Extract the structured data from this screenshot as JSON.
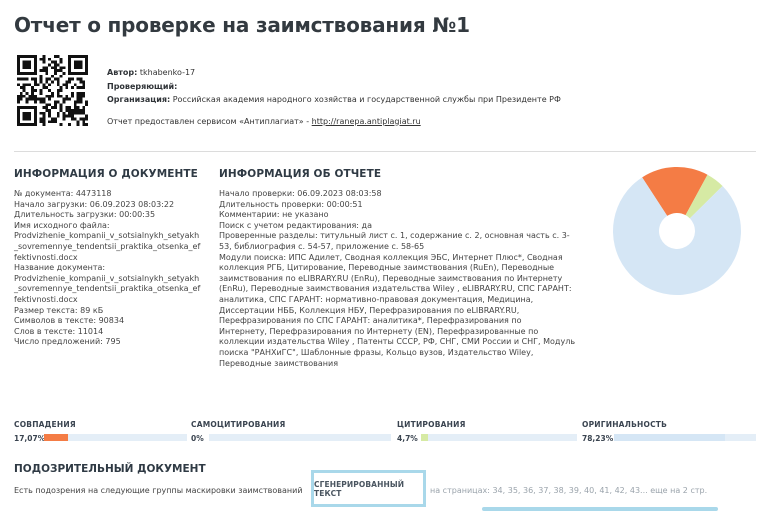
{
  "title": "Отчет о проверке на заимствования №1",
  "meta": {
    "author_label": "Автор:",
    "author_value": "tkhabenko-17",
    "checker_label": "Проверяющий:",
    "checker_value": "",
    "org_label": "Организация:",
    "org_value": "Российская академия народного хозяйства и государственной службы при Президенте РФ",
    "service_text": "Отчет предоставлен сервисом «Антиплагиат» - ",
    "service_link": "http://ranepa.antiplagiat.ru"
  },
  "doc_info": {
    "heading": "ИНФОРМАЦИЯ О ДОКУМЕНТЕ",
    "lines": [
      "№ документа: 4473118",
      "Начало загрузки: 06.09.2023 08:03:22",
      "Длительность загрузки: 00:00:35",
      "Имя исходного файла:",
      "Prodvizhenie_kompanii_v_sotsialnykh_setyakh",
      "_sovremennye_tendentsii_praktika_otsenka_ef",
      "fektivnosti.docx",
      "Название документа:",
      "Prodvizhenie_kompanii_v_sotsialnykh_setyakh",
      "_sovremennye_tendentsii_praktika_otsenka_ef",
      "fektivnosti.docx",
      "Размер текста: 89 кБ",
      "Символов в тексте: 90834",
      "Слов в тексте: 11014",
      "Число предложений: 795"
    ]
  },
  "report_info": {
    "heading": "ИНФОРМАЦИЯ ОБ ОТЧЕТЕ",
    "lines": [
      "Начало проверки: 06.09.2023 08:03:58",
      "Длительность проверки: 00:00:51",
      "Комментарии: не указано",
      "Поиск с учетом редактирования: да",
      "Проверенные разделы: титульный лист с. 1, содержание с. 2, основная часть с. 3-",
      "53, библиография с. 54-57, приложение с. 58-65",
      "Модули поиска: ИПС Адилет, Сводная коллекция ЭБС, Интернет Плюс*, Сводная",
      "коллекция РГБ, Цитирование, Переводные заимствования (RuEn), Переводные",
      "заимствования по eLIBRARY.RU (EnRu), Переводные заимствования по Интернету",
      "(EnRu), Переводные заимствования издательства Wiley , eLIBRARY.RU, СПС ГАРАНТ:",
      "аналитика, СПС ГАРАНТ: нормативно-правовая документация, Медицина,",
      "Диссертации НББ, Коллекция НБУ, Перефразирования по eLIBRARY.RU,",
      "Перефразирования по СПС ГАРАНТ: аналитика*, Перефразирования по",
      "Интернету, Перефразирования по Интернету (EN), Перефразированные по",
      "коллекции издательства Wiley , Патенты СССР, РФ, СНГ, СМИ России и СНГ, Модуль",
      "поиска \"РАНХиГС\", Шаблонные фразы, Кольцо вузов, Издательство Wiley,",
      "Переводные заимствования"
    ]
  },
  "chart_data": {
    "type": "pie",
    "donut": true,
    "slices": [
      {
        "name": "СОВПАДЕНИЯ",
        "value": 17.07,
        "color": "#f47c45"
      },
      {
        "name": "САМОЦИТИРОВАНИЯ",
        "value": 0,
        "color": "#5b8ec8"
      },
      {
        "name": "ЦИТИРОВАНИЯ",
        "value": 4.7,
        "color": "#d6eaa4"
      },
      {
        "name": "ОРИГИНАЛЬНОСТЬ",
        "value": 78.23,
        "color": "#d5e6f5"
      }
    ]
  },
  "stats": [
    {
      "label": "СОВПАДЕНИЯ",
      "value": "17,07%",
      "fraction": 0.1707,
      "color": "#f47c45"
    },
    {
      "label": "САМОЦИТИРОВАНИЯ",
      "value": "0%",
      "fraction": 0,
      "color": "#5b8ec8"
    },
    {
      "label": "ЦИТИРОВАНИЯ",
      "value": "4,7%",
      "fraction": 0.047,
      "color": "#d6eaa4"
    },
    {
      "label": "ОРИГИНАЛЬНОСТЬ",
      "value": "78,23%",
      "fraction": 0.7823,
      "color": "#d5e6f5"
    }
  ],
  "suspicious": {
    "heading": "ПОДОЗРИТЕЛЬНЫЙ ДОКУМЕНТ",
    "text": "Есть подозрения на следующие группы маскировки заимствований",
    "tag": "СГЕНЕРИРОВАННЫЙ ТЕКСТ",
    "pages": "на страницах: 34, 35, 36, 37, 38, 39, 40, 41, 42, 43... еще на 2 стр."
  }
}
